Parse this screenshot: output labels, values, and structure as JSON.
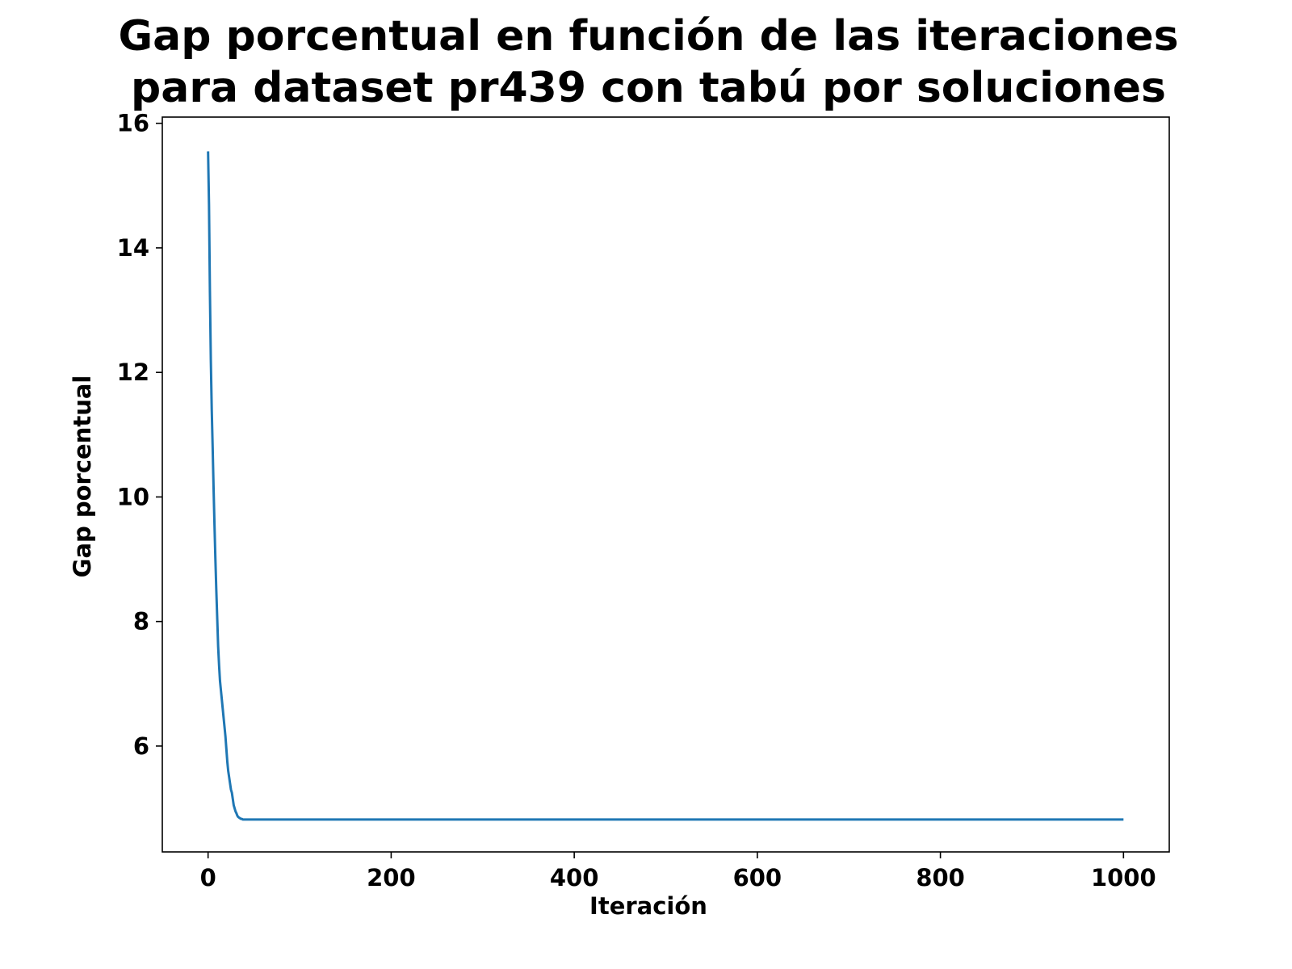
{
  "chart_data": {
    "type": "line",
    "title": [
      "Gap porcentual en función de las iteraciones",
      "para dataset pr439 con tabú por soluciones"
    ],
    "xlabel": "Iteración",
    "ylabel": "Gap porcentual",
    "xlim": [
      -50,
      1050
    ],
    "ylim": [
      4.3,
      16.1
    ],
    "xticks": [
      0,
      200,
      400,
      600,
      800,
      1000
    ],
    "yticks": [
      6,
      8,
      10,
      12,
      14,
      16
    ],
    "grid": false,
    "series": [
      {
        "color": "#1f77b4",
        "x": [
          0,
          1,
          2,
          3,
          4,
          5,
          6,
          7,
          8,
          9,
          10,
          11,
          12,
          13,
          14,
          15,
          16,
          17,
          18,
          19,
          20,
          21,
          22,
          23,
          24,
          25,
          26,
          27,
          28,
          29,
          30,
          31,
          32,
          33,
          34,
          35,
          36,
          37,
          38,
          39,
          40,
          42,
          44,
          46,
          48,
          50,
          100,
          200,
          300,
          400,
          500,
          600,
          700,
          800,
          900,
          1000
        ],
        "y": [
          15.55,
          14.7,
          13.3,
          12.2,
          11.4,
          10.8,
          10.15,
          9.55,
          9.0,
          8.5,
          8.05,
          7.6,
          7.3,
          7.05,
          6.9,
          6.75,
          6.6,
          6.45,
          6.3,
          6.15,
          5.95,
          5.75,
          5.6,
          5.5,
          5.4,
          5.3,
          5.25,
          5.15,
          5.05,
          5.0,
          4.95,
          4.92,
          4.88,
          4.86,
          4.85,
          4.84,
          4.83,
          4.83,
          4.82,
          4.82,
          4.82,
          4.82,
          4.82,
          4.82,
          4.82,
          4.82,
          4.82,
          4.82,
          4.82,
          4.82,
          4.82,
          4.82,
          4.82,
          4.82,
          4.82,
          4.82
        ]
      }
    ]
  }
}
